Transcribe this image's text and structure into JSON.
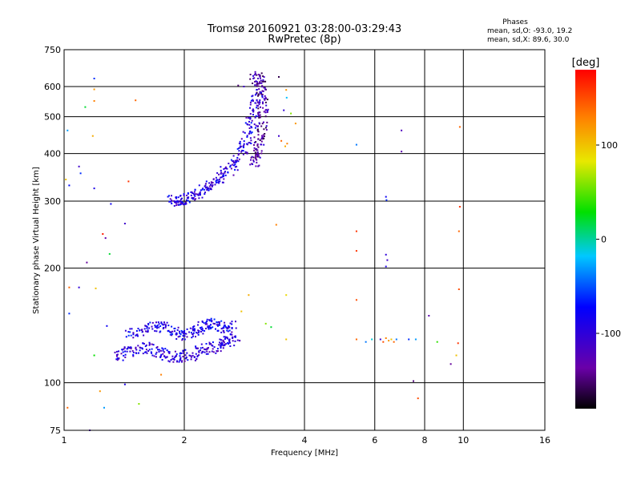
{
  "chart_data": {
    "type": "scatter",
    "title": "Tromsø 20160921 03:28:00-03:29:43",
    "subtitle": "RwPretec (8p)",
    "info": {
      "heading": "Phases",
      "line1": "mean, sd,O: -93.0, 19.2",
      "line2": "mean, sd,X:  89.6, 30.0"
    },
    "xlabel": "Frequency [MHz]",
    "ylabel": "Stationary phase Virtual Height [km]",
    "x_scale": "log",
    "y_scale": "log",
    "xlim": [
      1,
      16
    ],
    "ylim": [
      75,
      750
    ],
    "x_ticks": [
      1,
      2,
      4,
      6,
      8,
      10,
      16
    ],
    "y_ticks": [
      75,
      100,
      200,
      300,
      400,
      500,
      600,
      750
    ],
    "grid": true,
    "colorbar": {
      "label": "[deg]",
      "range": [
        -180,
        180
      ],
      "ticks": [
        100,
        0,
        -100
      ]
    },
    "traces": [
      {
        "x": [
          1.86,
          1.95,
          2.05,
          2.2,
          2.35,
          2.5,
          2.65,
          2.8,
          2.9,
          3.0,
          3.05
        ],
        "y": [
          300,
          302,
          305,
          318,
          332,
          350,
          375,
          410,
          460,
          520,
          580
        ],
        "phase": -95
      },
      {
        "x": [
          3.0,
          3.1,
          3.15,
          3.15,
          3.1,
          3.05,
          3.0
        ],
        "y": [
          640,
          620,
          560,
          500,
          440,
          400,
          380
        ],
        "phase": -130
      },
      {
        "x": [
          1.35,
          1.45,
          1.6,
          1.75,
          1.9,
          2.05,
          2.2,
          2.4,
          2.55,
          2.7
        ],
        "y": [
          118,
          121,
          124,
          120,
          117,
          118,
          121,
          124,
          127,
          133
        ],
        "phase": -100
      },
      {
        "x": [
          1.45,
          1.6,
          1.75,
          1.9,
          2.05,
          2.2,
          2.35,
          2.5,
          2.65
        ],
        "y": [
          132,
          138,
          141,
          136,
          133,
          140,
          143,
          139,
          141
        ],
        "phase": -90
      }
    ],
    "points": [
      {
        "x": 1.02,
        "y": 460,
        "phase": -30
      },
      {
        "x": 1.13,
        "y": 530,
        "phase": 20
      },
      {
        "x": 1.19,
        "y": 630,
        "phase": -60
      },
      {
        "x": 1.19,
        "y": 590,
        "phase": 120
      },
      {
        "x": 1.19,
        "y": 550,
        "phase": 130
      },
      {
        "x": 1.18,
        "y": 445,
        "phase": 110
      },
      {
        "x": 1.09,
        "y": 370,
        "phase": -110
      },
      {
        "x": 1.1,
        "y": 355,
        "phase": -60
      },
      {
        "x": 1.01,
        "y": 342,
        "phase": 100
      },
      {
        "x": 1.03,
        "y": 330,
        "phase": -70
      },
      {
        "x": 1.19,
        "y": 324,
        "phase": -90
      },
      {
        "x": 1.51,
        "y": 552,
        "phase": 140
      },
      {
        "x": 1.45,
        "y": 338,
        "phase": 160
      },
      {
        "x": 1.31,
        "y": 295,
        "phase": -80
      },
      {
        "x": 1.42,
        "y": 262,
        "phase": -110
      },
      {
        "x": 1.25,
        "y": 246,
        "phase": 170
      },
      {
        "x": 1.27,
        "y": 240,
        "phase": -130
      },
      {
        "x": 1.3,
        "y": 218,
        "phase": 20
      },
      {
        "x": 1.14,
        "y": 207,
        "phase": -140
      },
      {
        "x": 1.03,
        "y": 178,
        "phase": 140
      },
      {
        "x": 1.09,
        "y": 178,
        "phase": -100
      },
      {
        "x": 1.03,
        "y": 152,
        "phase": -60
      },
      {
        "x": 1.2,
        "y": 177,
        "phase": 100
      },
      {
        "x": 1.28,
        "y": 141,
        "phase": -80
      },
      {
        "x": 1.19,
        "y": 118,
        "phase": 30
      },
      {
        "x": 1.02,
        "y": 86,
        "phase": 140
      },
      {
        "x": 1.23,
        "y": 95,
        "phase": 120
      },
      {
        "x": 1.26,
        "y": 86,
        "phase": -30
      },
      {
        "x": 1.16,
        "y": 75,
        "phase": -120
      },
      {
        "x": 1.42,
        "y": 99,
        "phase": -90
      },
      {
        "x": 1.54,
        "y": 88,
        "phase": 60
      },
      {
        "x": 1.75,
        "y": 105,
        "phase": 130
      },
      {
        "x": 2.73,
        "y": 604,
        "phase": -150
      },
      {
        "x": 2.82,
        "y": 600,
        "phase": -110
      },
      {
        "x": 3.45,
        "y": 636,
        "phase": -160
      },
      {
        "x": 3.6,
        "y": 588,
        "phase": 120
      },
      {
        "x": 3.61,
        "y": 561,
        "phase": -20
      },
      {
        "x": 3.55,
        "y": 520,
        "phase": -100
      },
      {
        "x": 3.7,
        "y": 510,
        "phase": 60
      },
      {
        "x": 3.8,
        "y": 480,
        "phase": 120
      },
      {
        "x": 3.45,
        "y": 445,
        "phase": -110
      },
      {
        "x": 3.5,
        "y": 432,
        "phase": 140
      },
      {
        "x": 3.62,
        "y": 425,
        "phase": 130
      },
      {
        "x": 3.58,
        "y": 418,
        "phase": 110
      },
      {
        "x": 3.4,
        "y": 260,
        "phase": 130
      },
      {
        "x": 3.6,
        "y": 170,
        "phase": 90
      },
      {
        "x": 3.2,
        "y": 143,
        "phase": 60
      },
      {
        "x": 3.3,
        "y": 140,
        "phase": 20
      },
      {
        "x": 3.6,
        "y": 130,
        "phase": 100
      },
      {
        "x": 2.9,
        "y": 170,
        "phase": 110
      },
      {
        "x": 2.78,
        "y": 154,
        "phase": 100
      },
      {
        "x": 5.4,
        "y": 422,
        "phase": -40
      },
      {
        "x": 5.4,
        "y": 250,
        "phase": 160
      },
      {
        "x": 5.4,
        "y": 222,
        "phase": 160
      },
      {
        "x": 5.4,
        "y": 165,
        "phase": 150
      },
      {
        "x": 5.4,
        "y": 130,
        "phase": 140
      },
      {
        "x": 5.7,
        "y": 128,
        "phase": -40
      },
      {
        "x": 5.9,
        "y": 130,
        "phase": -10
      },
      {
        "x": 6.2,
        "y": 130,
        "phase": -110
      },
      {
        "x": 6.3,
        "y": 128,
        "phase": 150
      },
      {
        "x": 6.4,
        "y": 131,
        "phase": 130
      },
      {
        "x": 6.5,
        "y": 129,
        "phase": 120
      },
      {
        "x": 6.6,
        "y": 130,
        "phase": 100
      },
      {
        "x": 6.7,
        "y": 128,
        "phase": 140
      },
      {
        "x": 6.8,
        "y": 130,
        "phase": -40
      },
      {
        "x": 6.4,
        "y": 308,
        "phase": -80
      },
      {
        "x": 6.42,
        "y": 302,
        "phase": -60
      },
      {
        "x": 6.4,
        "y": 217,
        "phase": -100
      },
      {
        "x": 6.45,
        "y": 210,
        "phase": -110
      },
      {
        "x": 6.4,
        "y": 202,
        "phase": -90
      },
      {
        "x": 7.0,
        "y": 460,
        "phase": -120
      },
      {
        "x": 7.0,
        "y": 405,
        "phase": -130
      },
      {
        "x": 7.3,
        "y": 130,
        "phase": -60
      },
      {
        "x": 7.6,
        "y": 130,
        "phase": -30
      },
      {
        "x": 7.5,
        "y": 101,
        "phase": -150
      },
      {
        "x": 7.7,
        "y": 91,
        "phase": 150
      },
      {
        "x": 8.2,
        "y": 150,
        "phase": -130
      },
      {
        "x": 8.6,
        "y": 128,
        "phase": 40
      },
      {
        "x": 9.3,
        "y": 112,
        "phase": -140
      },
      {
        "x": 9.6,
        "y": 118,
        "phase": 100
      },
      {
        "x": 9.7,
        "y": 127,
        "phase": 160
      },
      {
        "x": 9.75,
        "y": 176,
        "phase": 150
      },
      {
        "x": 9.75,
        "y": 250,
        "phase": 140
      },
      {
        "x": 9.8,
        "y": 290,
        "phase": 160
      },
      {
        "x": 9.8,
        "y": 470,
        "phase": 140
      }
    ]
  }
}
